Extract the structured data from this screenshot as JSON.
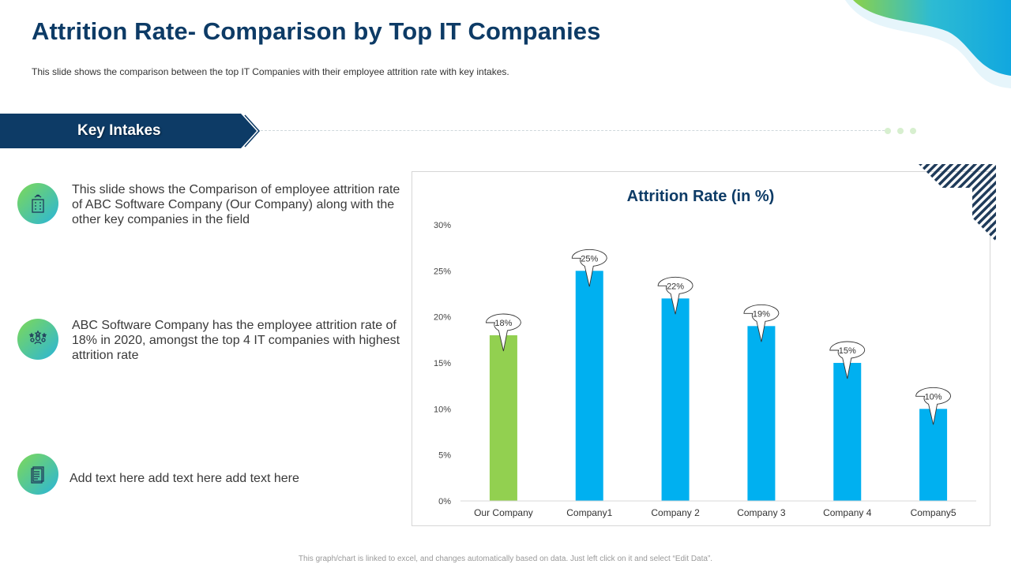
{
  "header": {
    "title": "Attrition Rate- Comparison by Top IT Companies",
    "subtitle": "This slide shows the comparison between the top IT Companies with their employee attrition rate with key intakes."
  },
  "key_intakes": {
    "label": "Key Intakes",
    "items": [
      {
        "icon": "office-building-icon",
        "text": "This slide shows the Comparison of employee attrition rate of ABC Software Company (Our Company) along with the other key companies in the field"
      },
      {
        "icon": "team-stars-icon",
        "text": "ABC Software Company has the employee attrition rate of 18% in 2020, amongst the top 4 IT companies with highest attrition rate"
      },
      {
        "icon": "document-icon",
        "text": "Add text here add text here add text here"
      }
    ]
  },
  "colors": {
    "navy": "#0d3b66",
    "green_bar": "#92d050",
    "blue_bar": "#00b0f0"
  },
  "chart_data": {
    "type": "bar",
    "title": "Attrition Rate (in %)",
    "categories": [
      "Our Company",
      "Company1",
      "Company 2",
      "Company 3",
      "Company 4",
      "Company5"
    ],
    "values": [
      18,
      25,
      22,
      19,
      15,
      10
    ],
    "data_labels": [
      "18%",
      "25%",
      "22%",
      "19%",
      "15%",
      "10%"
    ],
    "yticks": [
      0,
      5,
      10,
      15,
      20,
      25,
      30
    ],
    "ytick_labels": [
      "0%",
      "5%",
      "10%",
      "15%",
      "20%",
      "25%",
      "30%"
    ],
    "ylim": [
      0,
      30
    ],
    "highlight_index": 0,
    "xlabel": "",
    "ylabel": ""
  },
  "footer": {
    "note": "This graph/chart is linked to excel, and changes automatically based on data. Just left click on it and select “Edit Data”."
  }
}
